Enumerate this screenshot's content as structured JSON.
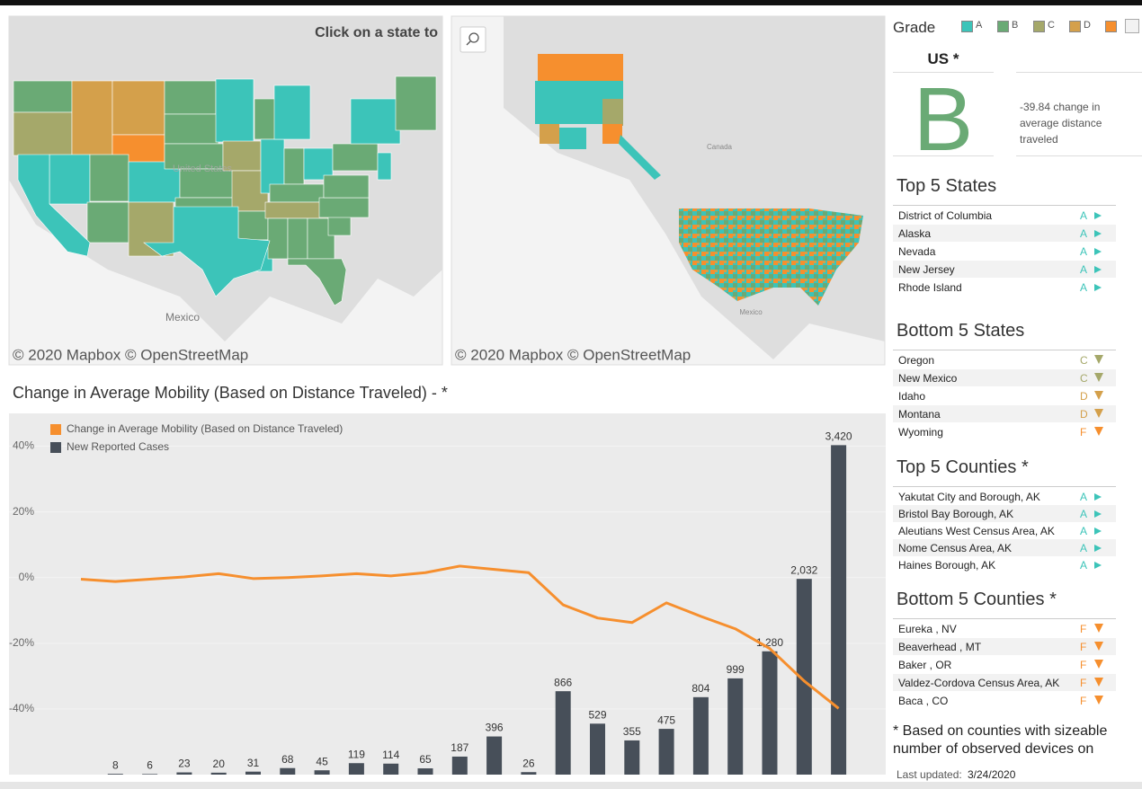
{
  "maps": {
    "left": {
      "hint": "Click on a state to",
      "country": "United States",
      "neighbor": "Mexico",
      "attribution": "© 2020 Mapbox © OpenStreetMap"
    },
    "right": {
      "north": "Canada",
      "south": "Mexico",
      "attribution": "© 2020 Mapbox © OpenStreetMap"
    }
  },
  "grade_legend": {
    "title": "Grade",
    "grades": [
      "A",
      "B",
      "C",
      "D"
    ]
  },
  "grade_colors": {
    "A": "#3cc4b9",
    "B": "#6aaa75",
    "C": "#a5a86a",
    "D": "#d4a04b",
    "F": "#f68f2e"
  },
  "us": {
    "label": "US *",
    "grade": "B",
    "note": "-39.84 change in average distance traveled"
  },
  "sections": [
    {
      "title": "Top 5 States",
      "direction": "up",
      "rows": [
        {
          "name": "District of Columbia",
          "grade": "A"
        },
        {
          "name": "Alaska",
          "grade": "A"
        },
        {
          "name": "Nevada",
          "grade": "A"
        },
        {
          "name": "New Jersey",
          "grade": "A"
        },
        {
          "name": "Rhode Island",
          "grade": "A"
        }
      ]
    },
    {
      "title": "Bottom 5 States",
      "direction": "down",
      "rows": [
        {
          "name": "Oregon",
          "grade": "C"
        },
        {
          "name": "New Mexico",
          "grade": "C"
        },
        {
          "name": "Idaho",
          "grade": "D"
        },
        {
          "name": "Montana",
          "grade": "D"
        },
        {
          "name": "Wyoming",
          "grade": "F"
        }
      ]
    },
    {
      "title": "Top 5 Counties *",
      "direction": "up",
      "rows": [
        {
          "name": "Yakutat City and Borough, AK",
          "grade": "A"
        },
        {
          "name": "Bristol Bay Borough, AK",
          "grade": "A"
        },
        {
          "name": "Aleutians West Census Area, AK",
          "grade": "A"
        },
        {
          "name": "Nome Census Area, AK",
          "grade": "A"
        },
        {
          "name": "Haines Borough, AK",
          "grade": "A"
        }
      ]
    },
    {
      "title": "Bottom 5 Counties *",
      "direction": "down",
      "rows": [
        {
          "name": "Eureka , NV",
          "grade": "F"
        },
        {
          "name": "Beaverhead , MT",
          "grade": "F"
        },
        {
          "name": "Baker , OR",
          "grade": "F"
        },
        {
          "name": "Valdez-Cordova Census Area, AK",
          "grade": "F"
        },
        {
          "name": "Baca , CO",
          "grade": "F"
        }
      ]
    }
  ],
  "footnote": "* Based on counties with sizeable number of observed devices on",
  "last_updated": {
    "label": "Last updated:",
    "date": "3/24/2020"
  },
  "chart_data": {
    "type": "combo",
    "title": "Change in Average Mobility (Based on Distance Traveled) - *",
    "categories": [
      null,
      null,
      null,
      null,
      null,
      null,
      null,
      null,
      null,
      null,
      null,
      null,
      null,
      null,
      null,
      null,
      null,
      null,
      null,
      null,
      null,
      null,
      null
    ],
    "series": [
      {
        "name": "Change in Average Mobility (Based on Distance Traveled)",
        "type": "line",
        "color": "#f68f2e",
        "values": [
          -0.5,
          -1.2,
          -0.5,
          0.2,
          1.2,
          -0.3,
          0,
          0.5,
          1.2,
          0.5,
          1.5,
          3.5,
          2.5,
          1.5,
          -8.3,
          -12.3,
          -13.7,
          -7.7,
          -11.8,
          -15.6,
          -21.6,
          -31.5,
          -39.84
        ]
      },
      {
        "name": "New Reported Cases",
        "type": "bar",
        "axis": "y2",
        "color": "#474f59",
        "values": [
          null,
          8,
          6,
          23,
          20,
          31,
          68,
          45,
          119,
          114,
          65,
          187,
          396,
          26,
          866,
          529,
          355,
          475,
          804,
          999,
          1280,
          2032,
          3420
        ],
        "value_labels": [
          null,
          "8",
          "6",
          "23",
          "20",
          "31",
          "68",
          "45",
          "119",
          "114",
          "65",
          "187",
          "396",
          "26",
          "866",
          "529",
          "355",
          "475",
          "804",
          "999",
          "1,280",
          "2,032",
          "3,420"
        ]
      }
    ],
    "ylim": [
      -60,
      50
    ],
    "yticks": [
      {
        "value": -40,
        "label": "-40%"
      },
      {
        "value": -20,
        "label": "-20%"
      },
      {
        "value": 0,
        "label": "0%"
      },
      {
        "value": 20,
        "label": "20%"
      },
      {
        "value": 40,
        "label": "40%"
      }
    ],
    "y2lim": [
      0,
      3750
    ],
    "grid": true,
    "legend": "top-left"
  }
}
